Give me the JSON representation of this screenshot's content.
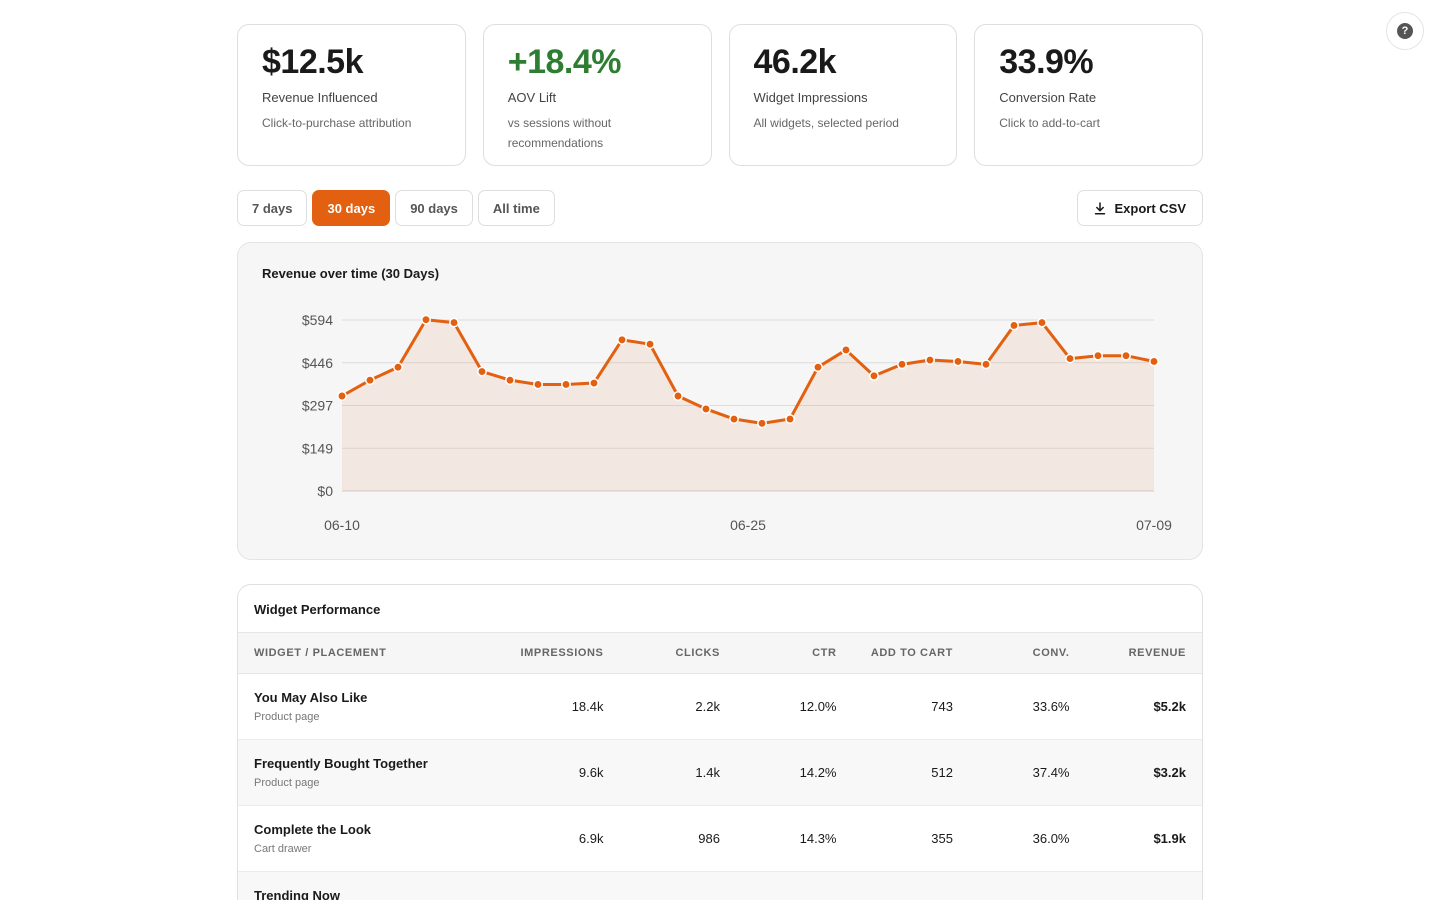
{
  "kpis": [
    {
      "value": "$12.5k",
      "label": "Revenue Influenced",
      "sub": "Click-to-purchase attribution",
      "positive": false
    },
    {
      "value": "+18.4%",
      "label": "AOV Lift",
      "sub": "vs sessions without recommendations",
      "positive": true
    },
    {
      "value": "46.2k",
      "label": "Widget Impressions",
      "sub": "All widgets, selected period",
      "positive": false
    },
    {
      "value": "33.9%",
      "label": "Conversion Rate",
      "sub": "Click to add-to-cart",
      "positive": false
    }
  ],
  "ranges": [
    "7 days",
    "30 days",
    "90 days",
    "All time"
  ],
  "active_range": "30 days",
  "export_label": "Export CSV",
  "help_icon_glyph": "?",
  "colors": {
    "accent": "#e2600f",
    "positive": "#2e7d32"
  },
  "chart_data": {
    "type": "area",
    "title": "Revenue over time (30 Days)",
    "y_ticks": [
      "$0",
      "$149",
      "$297",
      "$446",
      "$594"
    ],
    "ylim": [
      0,
      594
    ],
    "x_tick_labels": [
      "06-10",
      "06-25",
      "07-09"
    ],
    "series": [
      {
        "values": [
          330,
          385,
          430,
          595,
          585,
          415,
          385,
          370,
          370,
          375,
          525,
          510,
          330,
          285,
          250,
          235,
          250,
          430,
          490,
          400,
          440,
          455,
          450,
          440,
          575,
          585,
          460,
          470,
          470,
          450
        ]
      }
    ]
  },
  "table": {
    "title": "Widget Performance",
    "headers": [
      "WIDGET / PLACEMENT",
      "IMPRESSIONS",
      "CLICKS",
      "CTR",
      "ADD TO CART",
      "CONV.",
      "REVENUE"
    ],
    "rows": [
      {
        "name": "You May Also Like",
        "placement": "Product page",
        "impressions": "18.4k",
        "clicks": "2.2k",
        "ctr": "12.0%",
        "atc": "743",
        "conv": "33.6%",
        "revenue": "$5.2k"
      },
      {
        "name": "Frequently Bought Together",
        "placement": "Product page",
        "impressions": "9.6k",
        "clicks": "1.4k",
        "ctr": "14.2%",
        "atc": "512",
        "conv": "37.4%",
        "revenue": "$3.2k"
      },
      {
        "name": "Complete the Look",
        "placement": "Cart drawer",
        "impressions": "6.9k",
        "clicks": "986",
        "ctr": "14.3%",
        "atc": "355",
        "conv": "36.0%",
        "revenue": "$1.9k"
      },
      {
        "name": "Trending Now",
        "placement": "",
        "impressions": "",
        "clicks": "",
        "ctr": "",
        "atc": "",
        "conv": "",
        "revenue": ""
      }
    ]
  }
}
